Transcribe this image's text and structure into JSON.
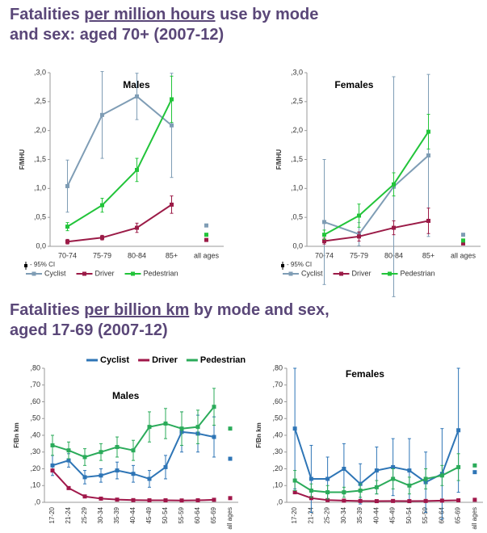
{
  "slide": {
    "headings": [
      {
        "line1": {
          "before": "Fatalities ",
          "underlined": "per million hours",
          "after": " use by mode"
        },
        "line2": "and sex: aged 70+ (2007-12)"
      },
      {
        "line1": {
          "before": "Fatalities ",
          "underlined": "per billion km",
          "after": " by mode and sex,"
        },
        "line2": "aged 17-69 (2007-12)"
      }
    ]
  },
  "chart_data": [
    {
      "type": "line",
      "title": "Males",
      "ylabel": "F/MHU",
      "ci_label": "- 95% CI",
      "legend": "bottom",
      "categories": [
        "70-74",
        "75-79",
        "80-84",
        "85+"
      ],
      "all_ages_label": "all ages",
      "ylim": [
        0,
        0.3
      ],
      "yticks": [
        {
          "value": 0,
          "label": "0,0"
        },
        {
          "value": 0.05,
          "label": ",0,5"
        },
        {
          "value": 0.1,
          "label": ",1,0"
        },
        {
          "value": 0.15,
          "label": ",1,5"
        },
        {
          "value": 0.2,
          "label": ",2,0"
        },
        {
          "value": 0.25,
          "label": ",2,5"
        },
        {
          "value": 0.3,
          "label": ",3,0"
        }
      ],
      "series": [
        {
          "name": "Cyclist",
          "color": "#7f9db5",
          "values": [
            0.104,
            0.227,
            0.259,
            0.209
          ],
          "errors": [
            0.045,
            0.075,
            0.04,
            0.09
          ],
          "all_ages": 0.036
        },
        {
          "name": "Driver",
          "color": "#9b1b47",
          "values": [
            0.008,
            0.015,
            0.032,
            0.072
          ],
          "errors": [
            0.004,
            0.004,
            0.008,
            0.015
          ],
          "all_ages": 0.011
        },
        {
          "name": "Pedestrian",
          "color": "#22c43a",
          "values": [
            0.034,
            0.071,
            0.132,
            0.254
          ],
          "errors": [
            0.007,
            0.012,
            0.02,
            0.04
          ],
          "all_ages": 0.02
        }
      ]
    },
    {
      "type": "line",
      "title": "Females",
      "ylabel": "F/MHU",
      "ci_label": "- 95% CI",
      "legend": "bottom",
      "categories": [
        "70-74",
        "75-79",
        "80-84",
        "85+"
      ],
      "all_ages_label": "all ages",
      "ylim": [
        0,
        0.3
      ],
      "yticks": [
        {
          "value": 0,
          "label": "0,0"
        },
        {
          "value": 0.05,
          "label": ",0,5"
        },
        {
          "value": 0.1,
          "label": ",1,0"
        },
        {
          "value": 0.15,
          "label": ",1,5"
        },
        {
          "value": 0.2,
          "label": ",2,0"
        },
        {
          "value": 0.25,
          "label": ",2,5"
        },
        {
          "value": 0.3,
          "label": ",3,0"
        }
      ],
      "series": [
        {
          "name": "Cyclist",
          "color": "#7f9db5",
          "values": [
            0.042,
            0.021,
            0.103,
            0.157
          ],
          "errors": [
            0.108,
            0.02,
            0.19,
            0.14
          ],
          "all_ages": 0.02
        },
        {
          "name": "Driver",
          "color": "#9b1b47",
          "values": [
            0.009,
            0.017,
            0.032,
            0.044
          ],
          "errors": [
            0.005,
            0.008,
            0.012,
            0.022
          ],
          "all_ages": 0.005
        },
        {
          "name": "Pedestrian",
          "color": "#22c43a",
          "values": [
            0.02,
            0.053,
            0.107,
            0.198
          ],
          "errors": [
            0.008,
            0.02,
            0.02,
            0.03
          ],
          "all_ages": 0.01
        }
      ]
    },
    {
      "type": "line",
      "title": "Males",
      "ylabel": "F/Bn km",
      "legend": "top",
      "categories": [
        "17-20",
        "21-24",
        "25-29",
        "30-34",
        "35-39",
        "40-44",
        "45-49",
        "50-54",
        "55-59",
        "60-64",
        "65-69"
      ],
      "all_ages_label": "all ages",
      "ylim": [
        0,
        0.8
      ],
      "yticks": [
        {
          "value": 0,
          "label": ",0"
        },
        {
          "value": 0.1,
          "label": ",10"
        },
        {
          "value": 0.2,
          "label": ",20"
        },
        {
          "value": 0.3,
          "label": ",30"
        },
        {
          "value": 0.4,
          "label": ",40"
        },
        {
          "value": 0.5,
          "label": ",50"
        },
        {
          "value": 0.6,
          "label": ",60"
        },
        {
          "value": 0.7,
          "label": ",70"
        },
        {
          "value": 0.8,
          "label": ",80"
        }
      ],
      "series": [
        {
          "name": "Cyclist",
          "color": "#2e75b6",
          "values": [
            0.22,
            0.25,
            0.15,
            0.16,
            0.19,
            0.17,
            0.14,
            0.21,
            0.42,
            0.41,
            0.39
          ],
          "errors": [
            0.06,
            0.04,
            0.04,
            0.04,
            0.05,
            0.05,
            0.05,
            0.07,
            0.12,
            0.11,
            0.12
          ],
          "all_ages": 0.26
        },
        {
          "name": "Driver",
          "color": "#a0174a",
          "values": [
            0.19,
            0.085,
            0.035,
            0.022,
            0.016,
            0.013,
            0.012,
            0.012,
            0.011,
            0.012,
            0.015
          ],
          "all_ages": 0.025
        },
        {
          "name": "Pedestrian",
          "color": "#2bab5a",
          "values": [
            0.34,
            0.31,
            0.27,
            0.3,
            0.33,
            0.31,
            0.45,
            0.47,
            0.44,
            0.45,
            0.57
          ],
          "errors": [
            0.06,
            0.05,
            0.05,
            0.05,
            0.06,
            0.06,
            0.09,
            0.09,
            0.1,
            0.1,
            0.11
          ],
          "all_ages": 0.44
        }
      ]
    },
    {
      "type": "line",
      "title": "Females",
      "ylabel": "F/Bn km",
      "categories": [
        "17-20",
        "21-24",
        "25-29",
        "30-34",
        "35-39",
        "40-44",
        "45-49",
        "50-54",
        "55-59",
        "60-64",
        "65-69"
      ],
      "all_ages_label": "all ages",
      "ylim": [
        0,
        0.8
      ],
      "yticks": [
        {
          "value": 0,
          "label": ",0"
        },
        {
          "value": 0.1,
          "label": ",10"
        },
        {
          "value": 0.2,
          "label": ",20"
        },
        {
          "value": 0.3,
          "label": ",30"
        },
        {
          "value": 0.4,
          "label": ",40"
        },
        {
          "value": 0.5,
          "label": ",50"
        },
        {
          "value": 0.6,
          "label": ",60"
        },
        {
          "value": 0.7,
          "label": ",70"
        },
        {
          "value": 0.8,
          "label": ",80"
        }
      ],
      "series": [
        {
          "name": "Cyclist",
          "color": "#2e75b6",
          "values": [
            0.44,
            0.14,
            0.14,
            0.2,
            0.11,
            0.19,
            0.21,
            0.19,
            0.12,
            0.17,
            0.43
          ],
          "errors": [
            0.36,
            0.2,
            0.13,
            0.15,
            0.12,
            0.14,
            0.17,
            0.19,
            0.18,
            0.27,
            0.37
          ],
          "all_ages": 0.18
        },
        {
          "name": "Driver",
          "color": "#a0174a",
          "values": [
            0.06,
            0.025,
            0.013,
            0.01,
            0.008,
            0.007,
            0.008,
            0.007,
            0.008,
            0.01,
            0.012
          ],
          "all_ages": 0.015
        },
        {
          "name": "Pedestrian",
          "color": "#2bab5a",
          "values": [
            0.13,
            0.07,
            0.06,
            0.06,
            0.07,
            0.09,
            0.14,
            0.1,
            0.14,
            0.16,
            0.21
          ],
          "errors": [
            0.06,
            0.04,
            0.04,
            0.03,
            0.04,
            0.04,
            0.06,
            0.05,
            0.06,
            0.06,
            0.08
          ],
          "all_ages": 0.22
        }
      ]
    }
  ]
}
